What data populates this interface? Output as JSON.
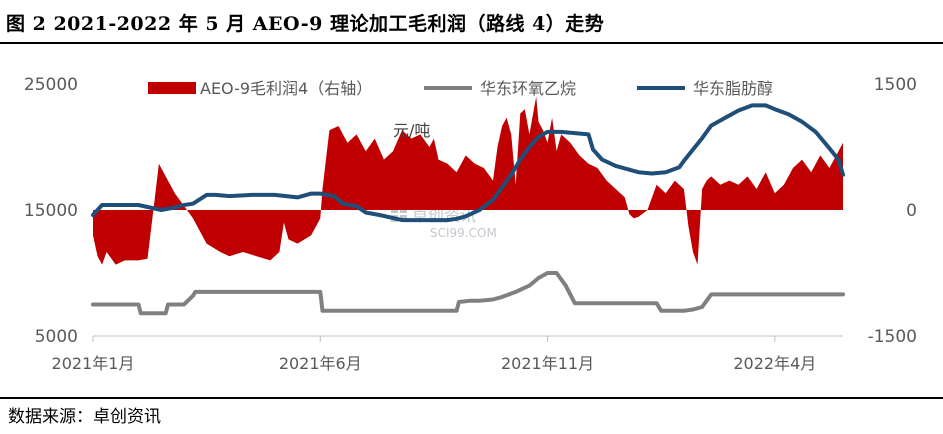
{
  "header": {
    "title": "图 2   2021-2022 年 5 月 AEO-9 理论加工毛利润（路线 4）走势"
  },
  "footer": {
    "source": "数据来源：卓创资讯"
  },
  "watermark": {
    "name": "卓创资讯",
    "url": "SCI99.COM"
  },
  "colors": {
    "profit": "#c00000",
    "eo": "#808080",
    "alcohol": "#1f4e79"
  },
  "chart_data": {
    "type": "line",
    "unit_label": "元/吨",
    "left_axis": {
      "ylim": [
        5000,
        25000
      ],
      "ticks": [
        "25000",
        "15000",
        "5000"
      ],
      "tick_values": [
        25000,
        15000,
        5000
      ]
    },
    "right_axis": {
      "ylim": [
        -1500,
        1500
      ],
      "ticks": [
        "1500",
        "0",
        "-1500"
      ],
      "tick_values": [
        1500,
        0,
        -1500
      ]
    },
    "x_axis": {
      "range": [
        0,
        16.5
      ],
      "ticks": [
        "2021年1月",
        "2021年6月",
        "2021年11月",
        "2022年4月"
      ],
      "tick_positions": [
        0,
        5,
        10,
        15
      ]
    },
    "legend": {
      "placement": "top"
    },
    "series": [
      {
        "name": "AEO-9毛利润4（右轴）",
        "type": "area",
        "axis": "right",
        "x": [
          0,
          0.1,
          0.2,
          0.3,
          0.5,
          0.7,
          1.0,
          1.2,
          1.35,
          1.45,
          1.6,
          1.8,
          2.0,
          2.2,
          2.5,
          2.8,
          3.0,
          3.3,
          3.6,
          3.9,
          4.1,
          4.2,
          4.3,
          4.5,
          4.8,
          5.0,
          5.05,
          5.2,
          5.4,
          5.6,
          5.8,
          6.0,
          6.2,
          6.4,
          6.6,
          6.8,
          7.0,
          7.2,
          7.4,
          7.5,
          7.6,
          7.8,
          8.0,
          8.2,
          8.4,
          8.6,
          8.8,
          8.9,
          9.0,
          9.1,
          9.2,
          9.3,
          9.4,
          9.5,
          9.6,
          9.7,
          9.75,
          9.8,
          9.9,
          10.0,
          10.1,
          10.2,
          10.3,
          10.5,
          10.7,
          10.9,
          11.1,
          11.3,
          11.5,
          11.7,
          11.8,
          11.9,
          12.0,
          12.2,
          12.4,
          12.6,
          12.8,
          13.0,
          13.1,
          13.2,
          13.3,
          13.4,
          13.5,
          13.6,
          13.8,
          14.0,
          14.2,
          14.4,
          14.6,
          14.8,
          15.0,
          15.2,
          15.4,
          15.6,
          15.8,
          16.0,
          16.2,
          16.4,
          16.5
        ],
        "values": [
          -300,
          -550,
          -650,
          -500,
          -650,
          -600,
          -600,
          -580,
          100,
          550,
          400,
          200,
          50,
          -100,
          -400,
          -500,
          -550,
          -500,
          -550,
          -600,
          -500,
          -150,
          -350,
          -400,
          -300,
          -100,
          250,
          950,
          1000,
          800,
          900,
          700,
          850,
          600,
          700,
          950,
          850,
          900,
          750,
          850,
          600,
          550,
          450,
          650,
          550,
          500,
          350,
          750,
          1000,
          1100,
          900,
          300,
          1150,
          1200,
          900,
          1200,
          1350,
          1050,
          950,
          800,
          1100,
          700,
          900,
          800,
          650,
          550,
          500,
          350,
          250,
          150,
          -50,
          -100,
          -80,
          0,
          300,
          200,
          350,
          250,
          -200,
          -500,
          -650,
          250,
          350,
          400,
          300,
          350,
          300,
          400,
          250,
          450,
          200,
          300,
          500,
          600,
          450,
          650,
          500,
          700,
          800
        ]
      },
      {
        "name": "华东环氧乙烷",
        "type": "line",
        "axis": "left",
        "x": [
          0,
          1.0,
          1.05,
          1.6,
          1.65,
          2.0,
          2.2,
          2.25,
          5.0,
          5.05,
          8.0,
          8.05,
          8.3,
          8.5,
          8.8,
          9.0,
          9.3,
          9.6,
          9.8,
          10.0,
          10.2,
          10.4,
          10.6,
          12.4,
          12.5,
          13.0,
          13.2,
          13.4,
          13.6,
          16.5
        ],
        "values": [
          7500,
          7500,
          6800,
          6800,
          7500,
          7500,
          8200,
          8500,
          8500,
          7000,
          7000,
          7700,
          7800,
          7800,
          7900,
          8100,
          8500,
          9000,
          9600,
          10000,
          10000,
          9000,
          7600,
          7600,
          7000,
          7000,
          7100,
          7300,
          8300,
          8300
        ]
      },
      {
        "name": "华东脂肪醇",
        "type": "line",
        "axis": "left",
        "x": [
          0,
          0.2,
          1.0,
          1.5,
          1.8,
          2.0,
          2.2,
          2.5,
          2.7,
          3.0,
          3.5,
          4.0,
          4.5,
          4.8,
          5.0,
          5.3,
          5.5,
          5.8,
          6.0,
          6.3,
          6.8,
          7.2,
          7.8,
          8.0,
          8.2,
          8.5,
          8.8,
          9.0,
          9.2,
          9.4,
          9.6,
          9.8,
          10.0,
          10.3,
          10.6,
          10.9,
          11.0,
          11.2,
          11.5,
          11.8,
          12.0,
          12.3,
          12.6,
          12.9,
          13.0,
          13.2,
          13.4,
          13.6,
          13.9,
          14.2,
          14.5,
          14.8,
          15.0,
          15.3,
          15.6,
          15.9,
          16.2,
          16.4,
          16.5
        ],
        "values": [
          14600,
          15400,
          15400,
          15000,
          15200,
          15400,
          15500,
          16200,
          16200,
          16100,
          16200,
          16200,
          16000,
          16300,
          16300,
          16100,
          15500,
          15300,
          14800,
          14600,
          14200,
          14200,
          14200,
          14300,
          14500,
          15000,
          15800,
          16800,
          17800,
          19000,
          20000,
          20800,
          21200,
          21200,
          21100,
          21000,
          19800,
          19000,
          18500,
          18200,
          18000,
          17900,
          18000,
          18400,
          18900,
          19800,
          20700,
          21700,
          22300,
          22900,
          23300,
          23300,
          23000,
          22600,
          22000,
          21200,
          19900,
          19000,
          17800
        ]
      }
    ]
  }
}
